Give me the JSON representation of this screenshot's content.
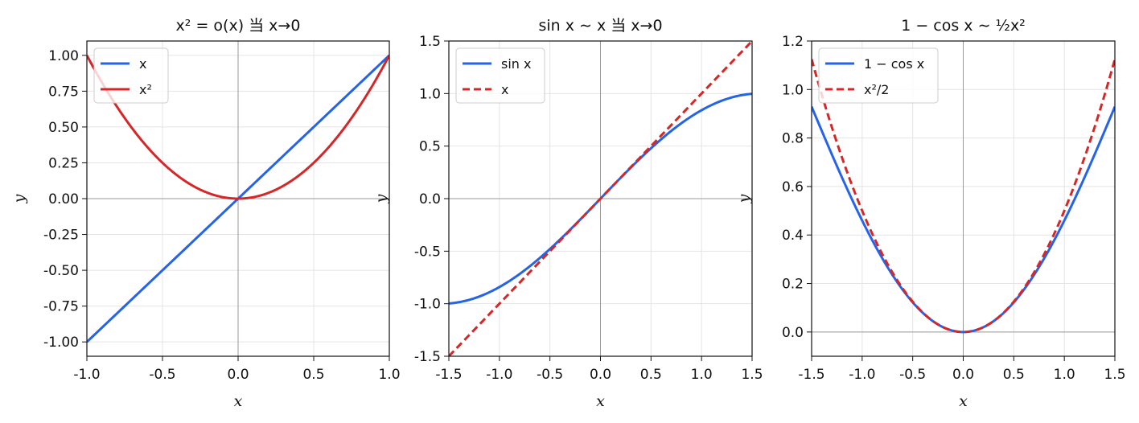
{
  "chart_data": [
    {
      "type": "line",
      "title": "x² = o(x) 当 x→0",
      "xlabel": "x",
      "ylabel": "y",
      "xlim": [
        -1.0,
        1.0
      ],
      "ylim": [
        -1.1,
        1.1
      ],
      "xticks": [
        -1.0,
        -0.5,
        0.0,
        0.5,
        1.0
      ],
      "xtick_labels": [
        "-1.0",
        "-0.5",
        "0.0",
        "0.5",
        "1.0"
      ],
      "yticks": [
        -1.0,
        -0.75,
        -0.5,
        -0.25,
        0.0,
        0.25,
        0.5,
        0.75,
        1.0
      ],
      "ytick_labels": [
        "-1.00",
        "-0.75",
        "-0.50",
        "-0.25",
        "0.00",
        "0.25",
        "0.50",
        "0.75",
        "1.00"
      ],
      "grid": true,
      "legend": "top-left",
      "series": [
        {
          "name": "x",
          "function": "x",
          "color": "#2563eb",
          "dash": "solid",
          "x": [
            -1.0,
            -0.5,
            0.0,
            0.5,
            1.0
          ],
          "y": [
            -1.0,
            -0.5,
            0.0,
            0.5,
            1.0
          ]
        },
        {
          "name": "x²",
          "function": "x^2",
          "color": "#d62728",
          "dash": "solid",
          "x": [
            -1.0,
            -0.5,
            0.0,
            0.5,
            1.0
          ],
          "y": [
            1.0,
            0.25,
            0.0,
            0.25,
            1.0
          ]
        }
      ]
    },
    {
      "type": "line",
      "title": "sin x ∼ x 当 x→0",
      "xlabel": "x",
      "ylabel": "y",
      "xlim": [
        -1.5,
        1.5
      ],
      "ylim": [
        -1.5,
        1.5
      ],
      "xticks": [
        -1.5,
        -1.0,
        -0.5,
        0.0,
        0.5,
        1.0,
        1.5
      ],
      "xtick_labels": [
        "-1.5",
        "-1.0",
        "-0.5",
        "0.0",
        "0.5",
        "1.0",
        "1.5"
      ],
      "yticks": [
        -1.5,
        -1.0,
        -0.5,
        0.0,
        0.5,
        1.0,
        1.5
      ],
      "ytick_labels": [
        "-1.5",
        "-1.0",
        "-0.5",
        "0.0",
        "0.5",
        "1.0",
        "1.5"
      ],
      "grid": true,
      "legend": "top-left",
      "series": [
        {
          "name": "sin x",
          "function": "sin",
          "color": "#2563eb",
          "dash": "solid",
          "x": [
            -1.5,
            -1.0,
            -0.5,
            0.0,
            0.5,
            1.0,
            1.5
          ],
          "y": [
            -0.997,
            -0.841,
            -0.479,
            0.0,
            0.479,
            0.841,
            0.997
          ]
        },
        {
          "name": "x",
          "function": "x",
          "color": "#d62728",
          "dash": "dashed",
          "x": [
            -1.5,
            -1.0,
            -0.5,
            0.0,
            0.5,
            1.0,
            1.5
          ],
          "y": [
            -1.5,
            -1.0,
            -0.5,
            0.0,
            0.5,
            1.0,
            1.5
          ]
        }
      ]
    },
    {
      "type": "line",
      "title": "1 − cos x ∼ ½x²",
      "xlabel": "x",
      "ylabel": "y",
      "xlim": [
        -1.5,
        1.5
      ],
      "ylim": [
        -0.1,
        1.2
      ],
      "xticks": [
        -1.5,
        -1.0,
        -0.5,
        0.0,
        0.5,
        1.0,
        1.5
      ],
      "xtick_labels": [
        "-1.5",
        "-1.0",
        "-0.5",
        "0.0",
        "0.5",
        "1.0",
        "1.5"
      ],
      "yticks": [
        0.0,
        0.2,
        0.4,
        0.6,
        0.8,
        1.0,
        1.2
      ],
      "ytick_labels": [
        "0.0",
        "0.2",
        "0.4",
        "0.6",
        "0.8",
        "1.0",
        "1.2"
      ],
      "grid": true,
      "legend": "top-left",
      "series": [
        {
          "name": "1 − cos x",
          "function": "one_minus_cos",
          "color": "#2563eb",
          "dash": "solid",
          "x": [
            -1.5,
            -1.0,
            -0.5,
            0.0,
            0.5,
            1.0,
            1.5
          ],
          "y": [
            0.929,
            0.46,
            0.122,
            0.0,
            0.122,
            0.46,
            0.929
          ]
        },
        {
          "name": "x²/2",
          "function": "half_x2",
          "color": "#d62728",
          "dash": "dashed",
          "x": [
            -1.5,
            -1.0,
            -0.5,
            0.0,
            0.5,
            1.0,
            1.5
          ],
          "y": [
            1.125,
            0.5,
            0.125,
            0.0,
            0.125,
            0.5,
            1.125
          ]
        }
      ]
    }
  ]
}
